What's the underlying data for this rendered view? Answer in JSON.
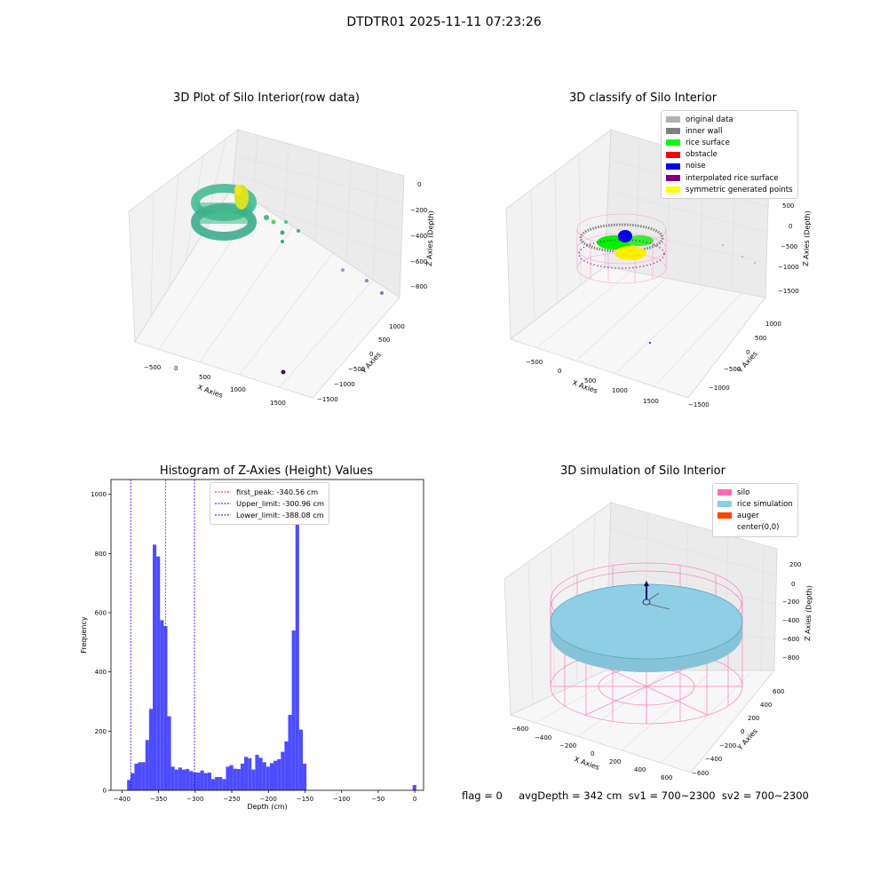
{
  "suptitle": "DTDTR01 2025-11-11 07:23:26",
  "panel_raw": {
    "title": "3D Plot of Silo Interior(row data)",
    "xlabel": "X Axies",
    "ylabel": "Y Axies",
    "zlabel": "Z Axies (Depth)",
    "xticks": [
      "−500",
      "0",
      "500",
      "1000",
      "1500"
    ],
    "yticks": [
      "1000",
      "500",
      "0",
      "−500",
      "−1000",
      "−1500"
    ],
    "zticks": [
      "0",
      "−200",
      "−400",
      "−600",
      "−800"
    ]
  },
  "panel_classify": {
    "title": "3D classify of Silo Interior",
    "xlabel": "X Axies",
    "ylabel": "Y Axies",
    "zlabel": "Z Axies (Depth)",
    "xticks": [
      "−500",
      "0",
      "500",
      "1000",
      "1500"
    ],
    "yticks": [
      "1000",
      "500",
      "0",
      "−500",
      "−1000",
      "−1500"
    ],
    "zticks": [
      "1000",
      "500",
      "0",
      "−500",
      "−1000",
      "−1500"
    ],
    "legend": [
      {
        "label": "original data",
        "color": "#b0b0b0"
      },
      {
        "label": "inner wall",
        "color": "#808080"
      },
      {
        "label": "rice surface",
        "color": "#00ff00"
      },
      {
        "label": "obstacle",
        "color": "#ff0000"
      },
      {
        "label": "noise",
        "color": "#0000ff"
      },
      {
        "label": "interpolated rice surface",
        "color": "#800080"
      },
      {
        "label": "symmetric generated points",
        "color": "#ffff00"
      }
    ]
  },
  "panel_simulation": {
    "title": "3D simulation of Silo Interior",
    "xlabel": "X Axies",
    "ylabel": "Y Axies",
    "zlabel": "Z Axies (Depth)",
    "xticks": [
      "−600",
      "−400",
      "−200",
      "0",
      "200",
      "400",
      "600"
    ],
    "yticks": [
      "600",
      "400",
      "200",
      "0",
      "−200",
      "−400",
      "−600"
    ],
    "zticks": [
      "200",
      "0",
      "−200",
      "−400",
      "−600",
      "−800"
    ],
    "legend": [
      {
        "label": "silo",
        "color": "#ff69b4"
      },
      {
        "label": "rice simulation",
        "color": "#87ceeb"
      },
      {
        "label": "auger",
        "color": "#ff4500"
      },
      {
        "label": "center(0,0)",
        "color": "#ffffff"
      }
    ]
  },
  "footer": {
    "text": "flag = 0     avgDepth = 342 cm  sv1 = 700~2300  sv2 = 700~2300"
  },
  "chart_data": {
    "type": "bar",
    "title": "Histogram of Z-Axies (Height) Values",
    "xlabel": "Depth (cm)",
    "ylabel": "Frequency",
    "xlim": [
      -415,
      12
    ],
    "ylim": [
      0,
      1050
    ],
    "xticks": [
      -400,
      -350,
      -300,
      -250,
      -200,
      -150,
      -100,
      -50,
      0
    ],
    "yticks": [
      0,
      200,
      400,
      600,
      800,
      1000
    ],
    "bar_color": "#4d4dff",
    "bins": {
      "left_edges": [
        -393,
        -388,
        -383,
        -378,
        -373,
        -368,
        -363,
        -358,
        -353,
        -348,
        -343,
        -338,
        -333,
        -328,
        -323,
        -318,
        -313,
        -308,
        -303,
        -298,
        -293,
        -288,
        -283,
        -278,
        -273,
        -268,
        -263,
        -258,
        -253,
        -248,
        -243,
        -238,
        -233,
        -228,
        -223,
        -218,
        -213,
        -208,
        -203,
        -198,
        -193,
        -188,
        -183,
        -178,
        -173,
        -168,
        -163,
        -158,
        -153,
        -148,
        -143,
        -138,
        -133,
        -128,
        -123,
        -118,
        -113,
        -108,
        -103,
        -98,
        -93,
        -88,
        -83,
        -78,
        -73,
        -68,
        -63,
        -58,
        -53,
        -48,
        -43,
        -38,
        -33,
        -28,
        -23,
        -18,
        -13,
        -8,
        -3
      ],
      "width": 5,
      "counts": [
        35,
        58,
        90,
        95,
        95,
        170,
        275,
        830,
        790,
        575,
        555,
        250,
        80,
        70,
        77,
        70,
        72,
        65,
        60,
        60,
        67,
        58,
        60,
        38,
        45,
        45,
        38,
        80,
        85,
        73,
        72,
        90,
        113,
        108,
        70,
        120,
        110,
        95,
        80,
        92,
        100,
        105,
        130,
        165,
        255,
        540,
        1005,
        205,
        90,
        0,
        0,
        0,
        0,
        0,
        0,
        0,
        0,
        0,
        0,
        0,
        0,
        0,
        0,
        0,
        0,
        0,
        0,
        0,
        0,
        0,
        0,
        0,
        0,
        0,
        0,
        0,
        0,
        0,
        18
      ]
    },
    "vlines": [
      {
        "label": "first_peak: -340.56 cm",
        "x": -340.56,
        "color": "#ff0000"
      },
      {
        "label": "Upper_limit: -300.96 cm",
        "x": -300.96,
        "color": "#0000ff"
      },
      {
        "label": "Lower_limit: -388.08 cm",
        "x": -388.08,
        "color": "#0000ff"
      }
    ]
  }
}
